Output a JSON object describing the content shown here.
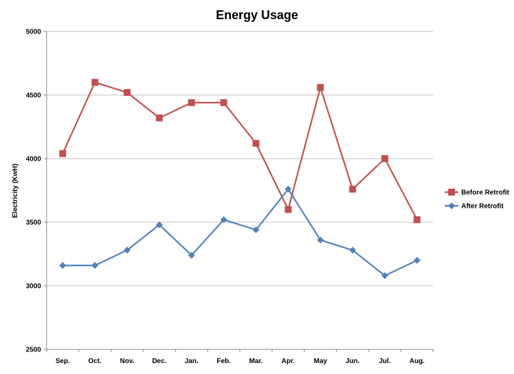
{
  "chart_data": {
    "type": "line",
    "title": "Energy Usage",
    "xlabel": "",
    "ylabel": "Electricity (KwH)",
    "ylim": [
      2500,
      5000
    ],
    "yticks": [
      2500,
      3000,
      3500,
      4000,
      4500,
      5000
    ],
    "grid": true,
    "legend_position": "right",
    "categories": [
      "Sep.",
      "Oct.",
      "Nov.",
      "Dec.",
      "Jan.",
      "Feb.",
      "Mar.",
      "Apr.",
      "May",
      "Jun.",
      "Jul.",
      "Aug."
    ],
    "series": [
      {
        "name": "Before Retrofit",
        "color": "#c0504d",
        "marker": "square",
        "values": [
          4040,
          4600,
          4520,
          4320,
          4440,
          4440,
          4120,
          3600,
          4560,
          3760,
          4000,
          3520
        ]
      },
      {
        "name": "After Retrofit",
        "color": "#4f81bd",
        "marker": "diamond",
        "values": [
          3160,
          3160,
          3280,
          3480,
          3240,
          3520,
          3440,
          3760,
          3360,
          3280,
          3080,
          3200
        ]
      }
    ]
  }
}
